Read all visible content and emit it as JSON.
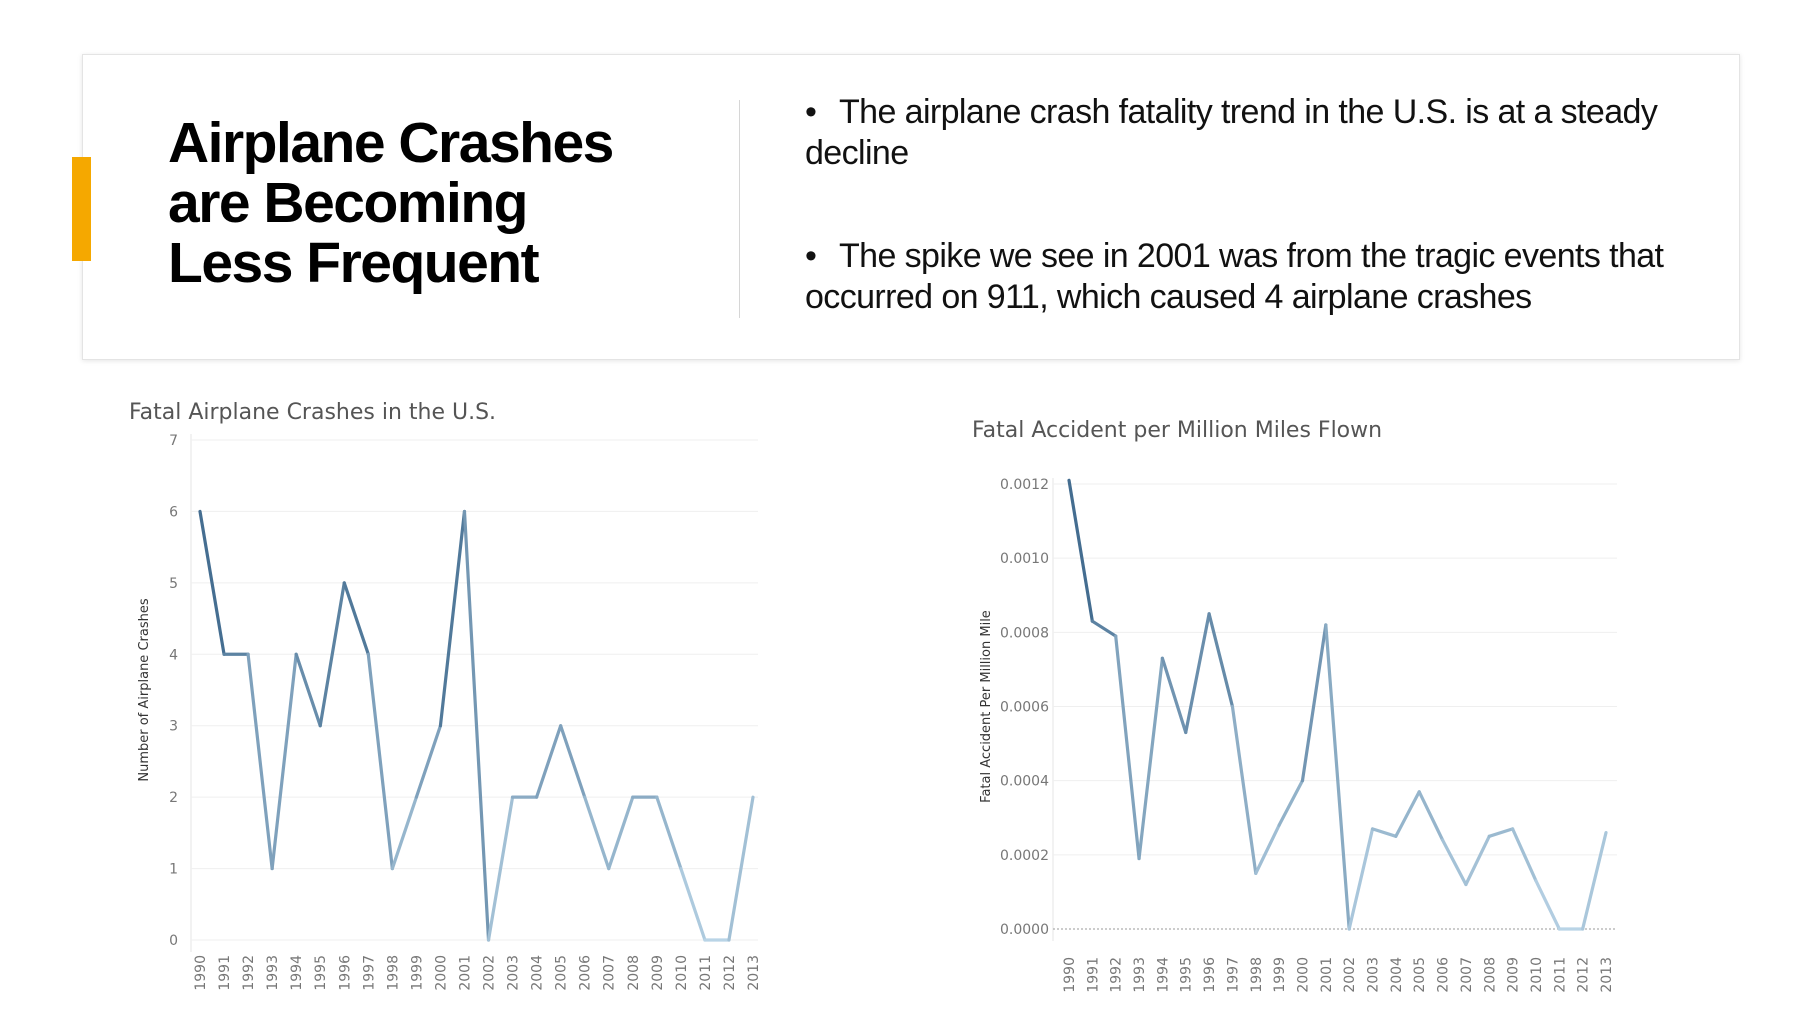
{
  "header": {
    "title": "Airplane Crashes\nare Becoming\nLess Frequent",
    "bullets": [
      "The airplane crash fatality trend in the U.S. is at a steady decline",
      "The spike we see in 2001 was from the tragic events that occurred on 911, which caused 4 airplane crashes"
    ],
    "accent_color": "#f5a800"
  },
  "chart_data": [
    {
      "type": "line",
      "title": "Fatal Airplane Crashes in the U.S.",
      "xlabel": "",
      "ylabel": "Number of Airplane Crashes",
      "ylim": [
        0,
        7
      ],
      "yticks": [
        "0",
        "1",
        "2",
        "3",
        "4",
        "5",
        "6",
        "7"
      ],
      "x": [
        "1990",
        "1991",
        "1992",
        "1993",
        "1994",
        "1995",
        "1996",
        "1997",
        "1998",
        "1999",
        "2000",
        "2001",
        "2002",
        "2003",
        "2004",
        "2005",
        "2006",
        "2007",
        "2008",
        "2009",
        "2010",
        "2011",
        "2012",
        "2013"
      ],
      "values": [
        6,
        4,
        4,
        1,
        4,
        3,
        5,
        4,
        1,
        2,
        3,
        6,
        0,
        2,
        2,
        3,
        2,
        1,
        2,
        2,
        1,
        0,
        0,
        2
      ],
      "color_scale": [
        "#b9d4e6",
        "#2e5a80"
      ],
      "grid": true
    },
    {
      "type": "line",
      "title": "Fatal Accident per Million Miles Flown",
      "xlabel": "",
      "ylabel": "Fatal Accident Per Million Mile",
      "ylim": [
        0,
        0.0012
      ],
      "yticks": [
        "0.0000",
        "0.0002",
        "0.0004",
        "0.0006",
        "0.0008",
        "0.0010",
        "0.0012"
      ],
      "x": [
        "1990",
        "1991",
        "1992",
        "1993",
        "1994",
        "1995",
        "1996",
        "1997",
        "1998",
        "1999",
        "2000",
        "2001",
        "2002",
        "2003",
        "2004",
        "2005",
        "2006",
        "2007",
        "2008",
        "2009",
        "2010",
        "2011",
        "2012",
        "2013"
      ],
      "values": [
        0.00121,
        0.00083,
        0.00079,
        0.00019,
        0.00073,
        0.00053,
        0.00085,
        0.0006,
        0.00015,
        0.00028,
        0.0004,
        0.00082,
        0.0,
        0.00027,
        0.00025,
        0.00037,
        0.00024,
        0.00012,
        0.00025,
        0.00027,
        0.00013,
        0.0,
        0.0,
        0.00026
      ],
      "color_scale": [
        "#b9d4e6",
        "#2e5a80"
      ],
      "grid": true
    }
  ]
}
